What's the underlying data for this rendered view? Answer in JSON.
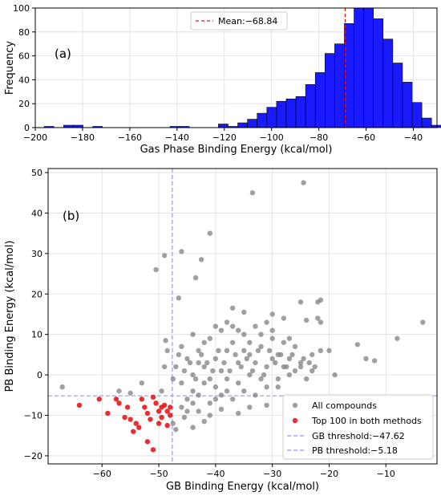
{
  "colors": {
    "bar_fill": "#1a1aff",
    "bar_edge": "#000000",
    "mean_line": "#e8161a",
    "point_all": "#808080",
    "point_top": "#e8161a",
    "threshold": "#9999ee"
  },
  "chart_data": [
    {
      "id": "a",
      "type": "bar",
      "panel_label": "(a)",
      "xlabel": "Gas Phase Binding Energy (kcal/mol)",
      "ylabel": "Frequency",
      "xlim": [
        -200,
        -30
      ],
      "ylim": [
        0,
        100
      ],
      "xticks": [
        -200,
        -180,
        -160,
        -140,
        -120,
        -100,
        -80,
        -60,
        -40
      ],
      "yticks": [
        0,
        20,
        40,
        60,
        80,
        100
      ],
      "grid": true,
      "legend": {
        "placement": "top-center",
        "entries": [
          "Mean:−68.84"
        ]
      },
      "mean": -68.84,
      "bin_width": 4.1,
      "bins": [
        {
          "x": -196.2,
          "count": 1
        },
        {
          "x": -188.0,
          "count": 2
        },
        {
          "x": -183.9,
          "count": 2
        },
        {
          "x": -175.7,
          "count": 1
        },
        {
          "x": -143.0,
          "count": 1
        },
        {
          "x": -138.9,
          "count": 1
        },
        {
          "x": -122.5,
          "count": 3
        },
        {
          "x": -118.4,
          "count": 1
        },
        {
          "x": -114.3,
          "count": 4
        },
        {
          "x": -110.2,
          "count": 7
        },
        {
          "x": -106.1,
          "count": 12
        },
        {
          "x": -102.0,
          "count": 17
        },
        {
          "x": -97.9,
          "count": 22
        },
        {
          "x": -93.8,
          "count": 24
        },
        {
          "x": -89.7,
          "count": 26
        },
        {
          "x": -85.6,
          "count": 36
        },
        {
          "x": -81.5,
          "count": 46
        },
        {
          "x": -77.4,
          "count": 62
        },
        {
          "x": -73.3,
          "count": 70
        },
        {
          "x": -69.2,
          "count": 87
        },
        {
          "x": -65.1,
          "count": 104
        },
        {
          "x": -61.0,
          "count": 101
        },
        {
          "x": -56.9,
          "count": 91
        },
        {
          "x": -52.8,
          "count": 74
        },
        {
          "x": -48.7,
          "count": 54
        },
        {
          "x": -44.6,
          "count": 38
        },
        {
          "x": -40.5,
          "count": 21
        },
        {
          "x": -36.4,
          "count": 8
        },
        {
          "x": -32.3,
          "count": 2
        }
      ]
    },
    {
      "id": "b",
      "type": "scatter",
      "panel_label": "(b)",
      "xlabel": "GB Binding Energy (kcal/mol)",
      "ylabel": "PB Binding Energy (kcal/mol)",
      "xlim": [
        -69.5,
        -1
      ],
      "ylim": [
        -22,
        51
      ],
      "xticks": [
        -60,
        -50,
        -40,
        -30,
        -20,
        -10
      ],
      "yticks": [
        -20,
        -10,
        0,
        10,
        20,
        30,
        40,
        50
      ],
      "grid": true,
      "legend": {
        "placement": "lower-right",
        "entries": [
          "All compounds",
          "Top 100 in both methods",
          "GB threshold:−47.62",
          "PB threshold:−5.18"
        ]
      },
      "gb_threshold": -47.62,
      "pb_threshold": -5.18,
      "series": [
        {
          "name": "All compounds",
          "points": [
            [
              -67,
              -3
            ],
            [
              -57,
              -4
            ],
            [
              -55,
              -4.5
            ],
            [
              -53,
              -2
            ],
            [
              -49.5,
              -4
            ],
            [
              -49,
              2
            ],
            [
              -48.5,
              6
            ],
            [
              -48.8,
              8.5
            ],
            [
              -50.5,
              26
            ],
            [
              -49,
              29.5
            ],
            [
              -46.5,
              19
            ],
            [
              -46,
              30.5
            ],
            [
              -43.5,
              24
            ],
            [
              -42.5,
              28.5
            ],
            [
              -41,
              35
            ],
            [
              -33.5,
              45
            ],
            [
              -24.5,
              47.5
            ],
            [
              -37,
              16.5
            ],
            [
              -35,
              15.5
            ],
            [
              -30,
              15
            ],
            [
              -28,
              14
            ],
            [
              -25,
              18
            ],
            [
              -22,
              18
            ],
            [
              -21.5,
              18.5
            ],
            [
              -24,
              13.5
            ],
            [
              -22,
              14
            ],
            [
              -21.5,
              13
            ],
            [
              -20,
              6
            ],
            [
              -19,
              0
            ],
            [
              -15,
              7.5
            ],
            [
              -13.5,
              4
            ],
            [
              -8,
              9
            ],
            [
              -3.5,
              13
            ],
            [
              -12,
              3.5
            ],
            [
              -30,
              11
            ],
            [
              -27,
              9
            ],
            [
              -28,
              2
            ],
            [
              -26,
              1
            ],
            [
              -24,
              -1
            ],
            [
              -23,
              5
            ],
            [
              -29,
              -3
            ],
            [
              -31,
              -7.5
            ],
            [
              -38,
              -4
            ],
            [
              -40,
              -6
            ],
            [
              -43,
              -9
            ],
            [
              -41,
              -10
            ],
            [
              -45.5,
              -10.5
            ],
            [
              -45,
              -9
            ],
            [
              -44,
              -13
            ],
            [
              -42,
              -11.5
            ],
            [
              -36,
              -9.5
            ],
            [
              -34,
              -8
            ],
            [
              -47.5,
              -12
            ],
            [
              -46,
              -8
            ],
            [
              -44,
              -7
            ],
            [
              -39,
              -8.5
            ],
            [
              -47,
              -13.5
            ],
            [
              -44,
              0
            ],
            [
              -42,
              2
            ],
            [
              -40,
              4
            ],
            [
              -38,
              6
            ],
            [
              -36,
              3
            ],
            [
              -34,
              5
            ],
            [
              -32,
              7
            ],
            [
              -30,
              4
            ],
            [
              -41,
              9
            ],
            [
              -39,
              11
            ],
            [
              -37,
              12
            ],
            [
              -35,
              10
            ],
            [
              -33,
              12
            ],
            [
              -31,
              13
            ],
            [
              -45,
              4
            ],
            [
              -43,
              6
            ],
            [
              -46,
              -2
            ],
            [
              -44,
              -4
            ],
            [
              -42,
              -2
            ],
            [
              -40,
              -3
            ],
            [
              -38,
              -1
            ],
            [
              -36,
              -2
            ],
            [
              -34,
              0
            ],
            [
              -32,
              -1
            ],
            [
              -33,
              3
            ],
            [
              -35,
              6
            ],
            [
              -37,
              8
            ],
            [
              -39,
              1
            ],
            [
              -41,
              -1
            ],
            [
              -43,
              3
            ],
            [
              -31,
              2
            ],
            [
              -29,
              5
            ],
            [
              -27,
              4
            ],
            [
              -25,
              2
            ],
            [
              -26,
              7
            ],
            [
              -28,
              8
            ],
            [
              -30,
              9
            ],
            [
              -32,
              10
            ],
            [
              -34,
              8
            ],
            [
              -36,
              11
            ],
            [
              -38,
              13
            ],
            [
              -40,
              12
            ],
            [
              -42,
              8
            ],
            [
              -44,
              10
            ],
            [
              -46,
              7
            ],
            [
              -45,
              -6
            ],
            [
              -43,
              -5
            ],
            [
              -41,
              -7
            ],
            [
              -39,
              -5
            ],
            [
              -37,
              -6
            ],
            [
              -35,
              -4
            ],
            [
              -33,
              -5
            ],
            [
              -31,
              -3
            ],
            [
              -29,
              -1
            ],
            [
              -27,
              0
            ],
            [
              -25,
              3
            ],
            [
              -23,
              1
            ],
            [
              -47,
              2
            ],
            [
              -47.5,
              -1
            ],
            [
              -46.5,
              5
            ],
            [
              -45.5,
              1
            ],
            [
              -44.5,
              3
            ],
            [
              -43.5,
              -1
            ],
            [
              -42.5,
              5
            ],
            [
              -41.5,
              3
            ],
            [
              -40.5,
              1
            ],
            [
              -39.5,
              6
            ],
            [
              -38.5,
              3
            ],
            [
              -37.5,
              1
            ],
            [
              -36.5,
              5
            ],
            [
              -35.5,
              2
            ],
            [
              -34.5,
              4
            ],
            [
              -33.5,
              1
            ],
            [
              -32.5,
              6
            ],
            [
              -31.5,
              0
            ],
            [
              -30.5,
              6
            ],
            [
              -29.5,
              3
            ],
            [
              -28.5,
              5
            ],
            [
              -27.5,
              2
            ],
            [
              -26.5,
              5
            ],
            [
              -24.5,
              4
            ],
            [
              -23.5,
              3
            ],
            [
              -22.5,
              2
            ],
            [
              -21.5,
              6
            ]
          ]
        },
        {
          "name": "Top 100 in both methods",
          "points": [
            [
              -64,
              -7.5
            ],
            [
              -60.5,
              -6
            ],
            [
              -59,
              -9.5
            ],
            [
              -57.5,
              -6
            ],
            [
              -57,
              -7
            ],
            [
              -56,
              -10.5
            ],
            [
              -55.5,
              -8
            ],
            [
              -55,
              -11
            ],
            [
              -54.5,
              -14
            ],
            [
              -54,
              -12
            ],
            [
              -53.5,
              -13
            ],
            [
              -53,
              -6
            ],
            [
              -52.5,
              -8
            ],
            [
              -52,
              -9.5
            ],
            [
              -51.5,
              -11
            ],
            [
              -51,
              -5.5
            ],
            [
              -50.5,
              -7
            ],
            [
              -50,
              -9
            ],
            [
              -49.5,
              -8
            ],
            [
              -49.5,
              -10.5
            ],
            [
              -49,
              -7.5
            ],
            [
              -48.5,
              -9
            ],
            [
              -48.5,
              -12.5
            ],
            [
              -48,
              -8
            ],
            [
              -48,
              -10
            ],
            [
              -51,
              -18.5
            ],
            [
              -50,
              -12
            ],
            [
              -52,
              -16.5
            ]
          ]
        }
      ]
    }
  ]
}
